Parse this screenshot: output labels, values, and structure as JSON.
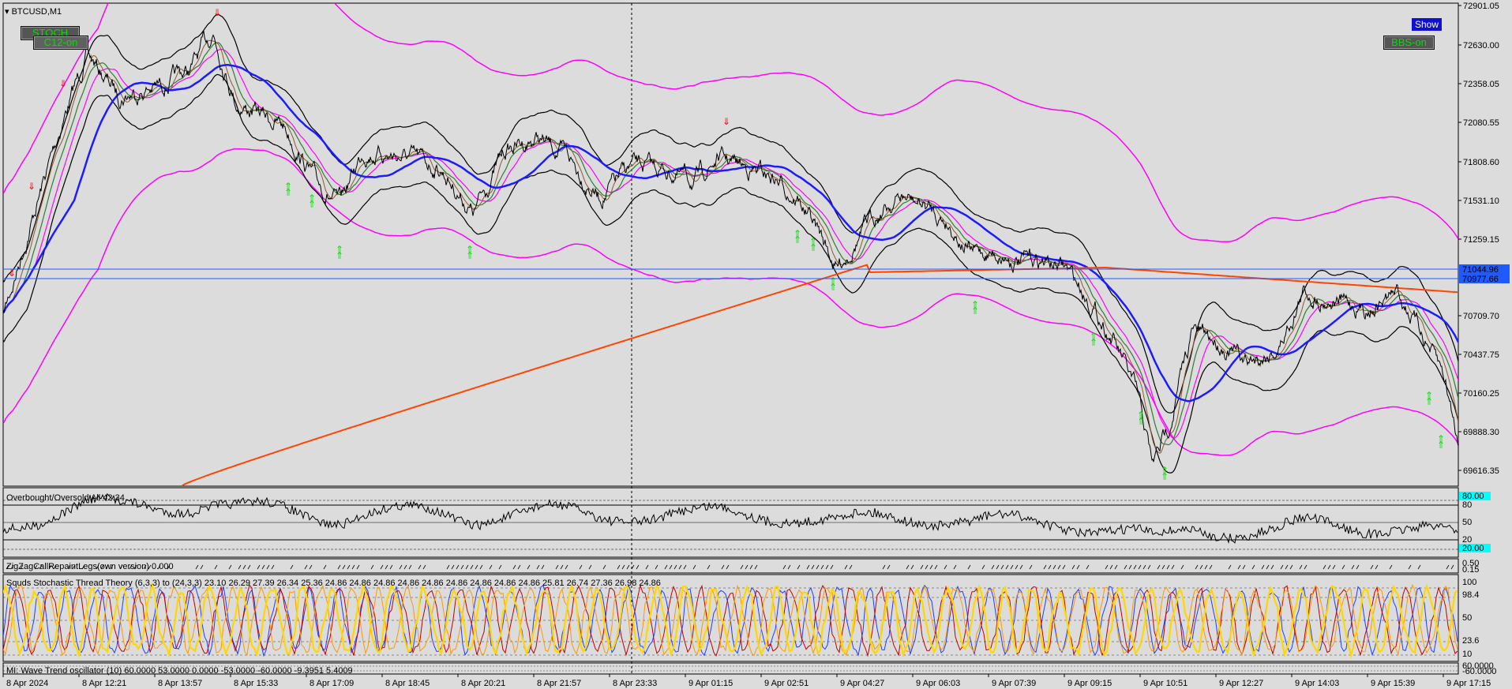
{
  "symbol": "BTCUSD,M1",
  "buttons": {
    "stoch": "STOCH",
    "c12": "C12-on",
    "show": "Show",
    "bbs": "BBS-on"
  },
  "price_axis": [
    "72901.05",
    "72630.00",
    "72358.05",
    "72080.55",
    "71808.60",
    "71531.10",
    "71259.15",
    "70709.70",
    "70437.75",
    "70160.25",
    "69888.30",
    "69616.35"
  ],
  "price_highlights": {
    "upper": "71044.96",
    "lower": "70977.66"
  },
  "time_axis": [
    "8 Apr 2024",
    "8 Apr 12:21",
    "8 Apr 13:57",
    "8 Apr 15:33",
    "8 Apr 17:09",
    "8 Apr 18:45",
    "8 Apr 20:21",
    "8 Apr 21:57",
    "8 Apr 23:33",
    "9 Apr 01:15",
    "9 Apr 02:51",
    "9 Apr 04:27",
    "9 Apr 06:03",
    "9 Apr 07:39",
    "9 Apr 09:15",
    "9 Apr 10:51",
    "9 Apr 12:27",
    "9 Apr 14:03",
    "9 Apr 15:39",
    "9 Apr 17:15"
  ],
  "indicators": {
    "ob_os": {
      "label": "Overbought/Oversold  All 42.34",
      "levels": [
        "80",
        "50",
        "20"
      ],
      "hl_top": "80.00",
      "hl_bottom": "20.00"
    },
    "zigzag": {
      "label": "ZigZagCallRepaintLegs(own version)  0.000",
      "levels": [
        "0.50",
        "0.15"
      ]
    },
    "stoch": {
      "label": "Squds Stochastic Thread Theory (6,3,3) to (24,3,3)  23.10  26.29  27.39  26.34  25.36  24.86  24.86  24.86  24.86  24.86  24.86  24.86  24.86  24.86  25.81  26.74  27.36  26.98  24.86",
      "levels": [
        "100",
        "98.4",
        "50",
        "23.6",
        "10"
      ]
    },
    "wave": {
      "label": "MI: Wave Trend oscillator (10) 60.0000  53.0000  0.0000  -53.0000  -60.0000  -9.3951  5.4009",
      "levels": [
        "60.0000",
        "-60.0000"
      ]
    }
  },
  "colors": {
    "bg": "#dcdcdc",
    "candle": "#000000",
    "bb_outer": "#ff00ff",
    "ma_blue": "#1c1cff",
    "ma_orange": "#ff4500",
    "hline": "#1f5aff",
    "up_arrow": "#00e000",
    "down_arrow": "#ff0000"
  }
}
